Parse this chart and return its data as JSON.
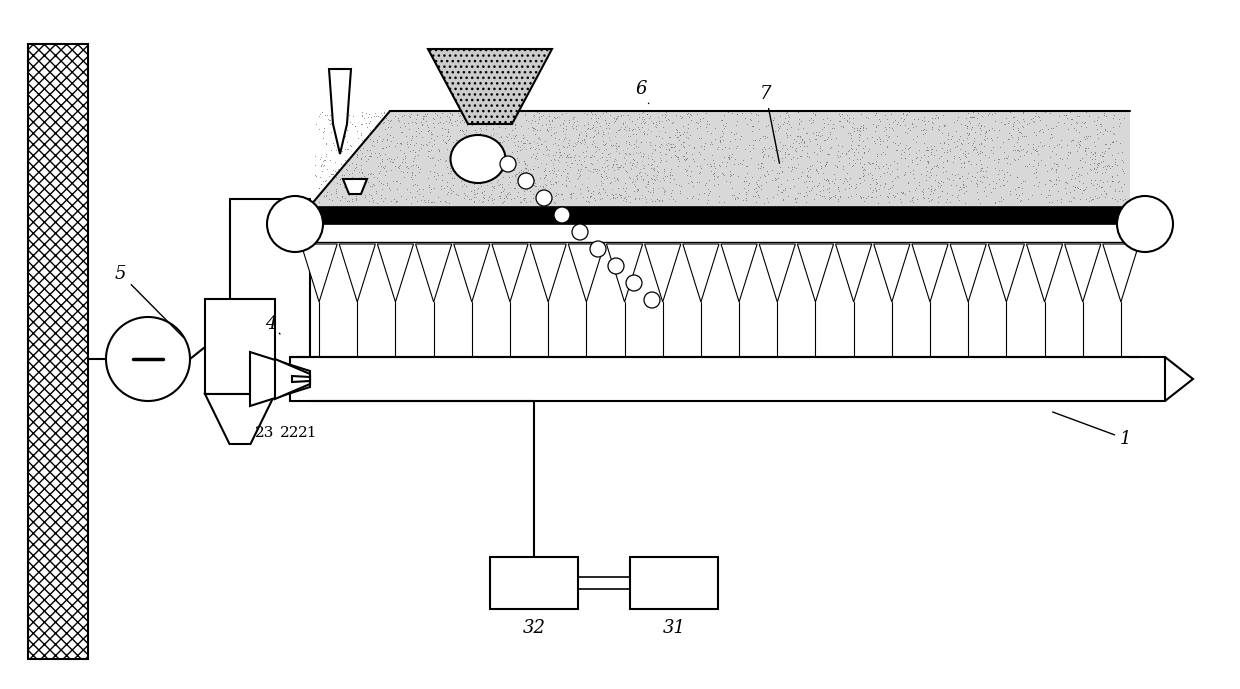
{
  "bg_color": "#ffffff",
  "fig_width": 12.4,
  "fig_height": 6.89,
  "dpi": 100
}
